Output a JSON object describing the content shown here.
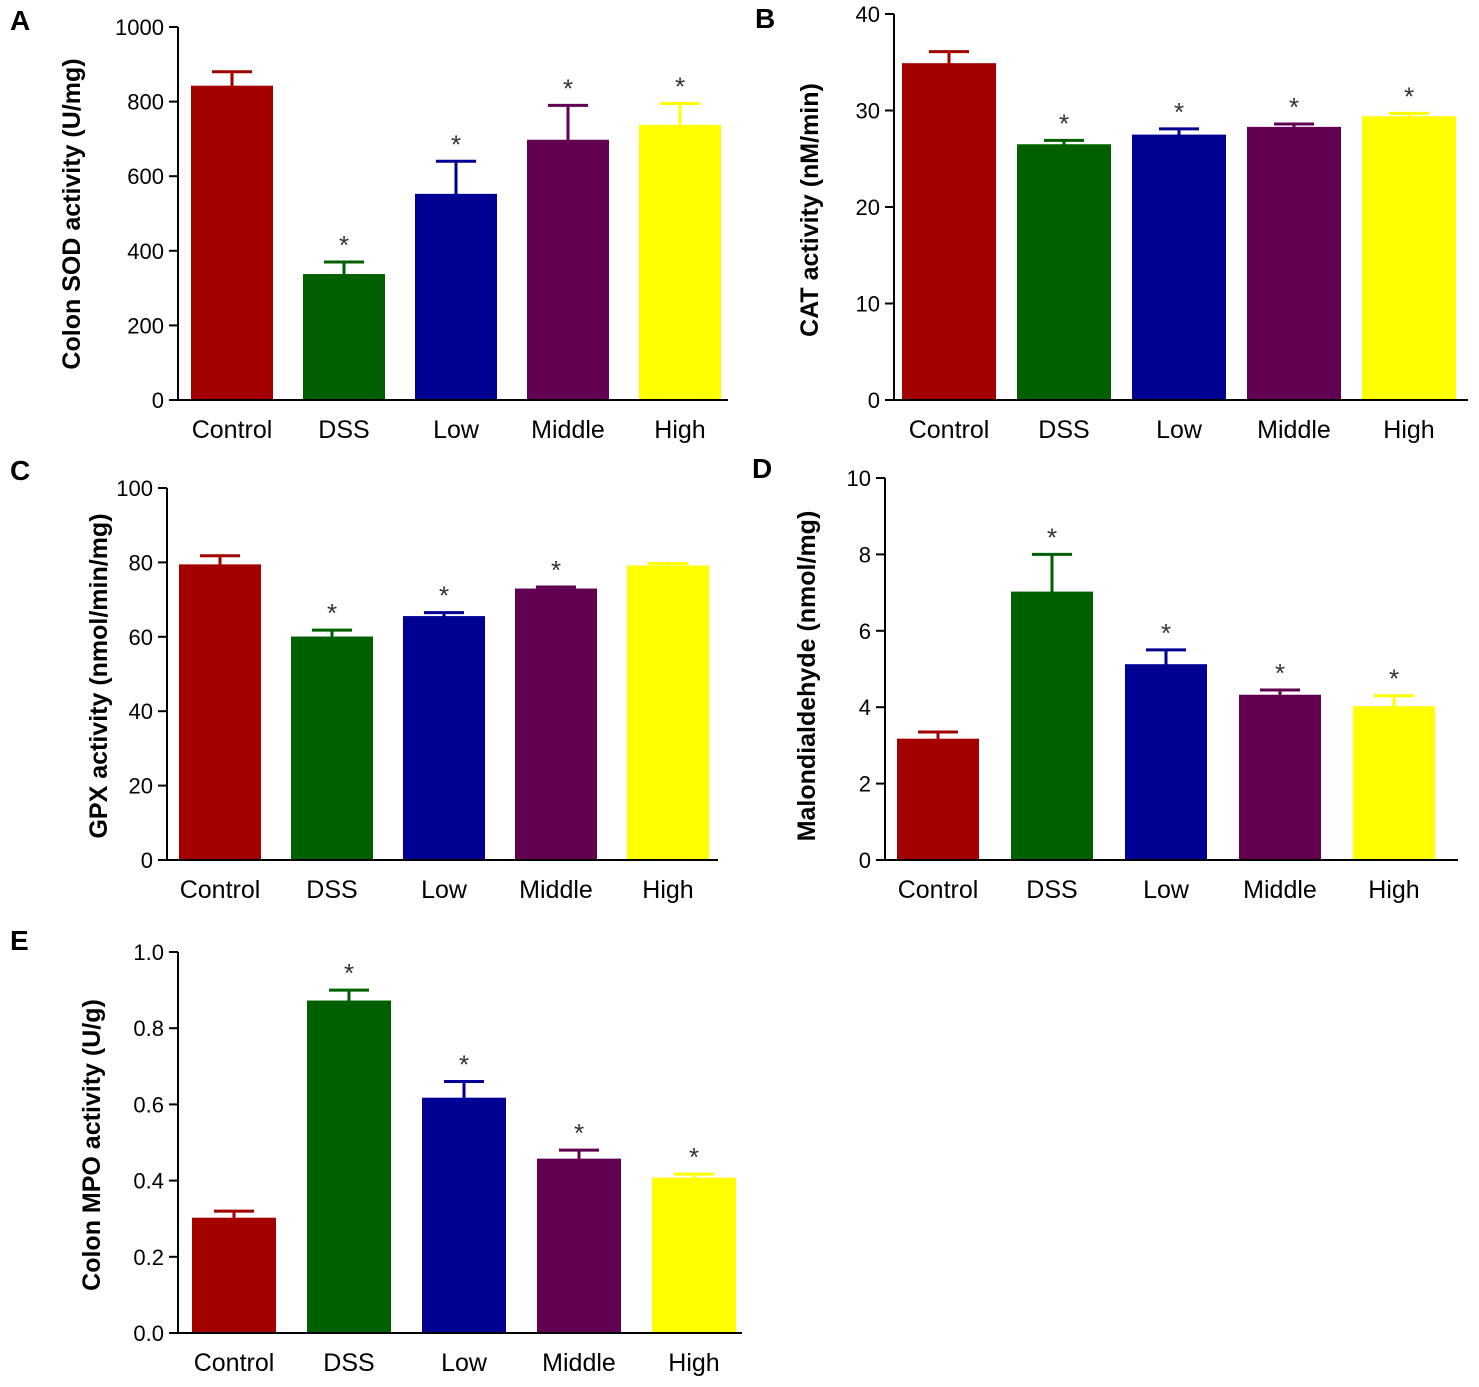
{
  "colors": {
    "Control": "#a30000",
    "DSS": "#006000",
    "Low": "#000093",
    "Middle": "#620052",
    "High": "#ffff00",
    "axis": "#000000"
  },
  "chart_data": [
    {
      "panel": "A",
      "type": "bar",
      "title": "",
      "xlabel": "",
      "ylabel": "Colon SOD activity (U/mg)",
      "categories": [
        "Control",
        "DSS",
        "Low",
        "Middle",
        "High"
      ],
      "values": [
        840,
        335,
        550,
        695,
        735
      ],
      "errors": [
        40,
        35,
        90,
        95,
        60
      ],
      "significance": [
        "",
        "*",
        "*",
        "*",
        "*"
      ],
      "ylim": [
        0,
        1000
      ],
      "yticks": [
        "0",
        "200",
        "400",
        "600",
        "800",
        "1000"
      ],
      "ytick_values": [
        0,
        200,
        400,
        600,
        800,
        1000
      ]
    },
    {
      "panel": "B",
      "type": "bar",
      "title": "",
      "xlabel": "",
      "ylabel": "CAT activity (nM/min)",
      "categories": [
        "Control",
        "DSS",
        "Low",
        "Middle",
        "High"
      ],
      "values": [
        34.8,
        26.4,
        27.4,
        28.2,
        29.3
      ],
      "errors": [
        1.3,
        0.5,
        0.7,
        0.4,
        0.4
      ],
      "significance": [
        "",
        "*",
        "*",
        "*",
        "*"
      ],
      "ylim": [
        0,
        40
      ],
      "yticks": [
        "0",
        "10",
        "20",
        "30",
        "40"
      ],
      "ytick_values": [
        0,
        10,
        20,
        30,
        40
      ]
    },
    {
      "panel": "C",
      "type": "bar",
      "title": "",
      "xlabel": "",
      "ylabel": "GPX activity (nmol/min/mg)",
      "categories": [
        "Control",
        "DSS",
        "Low",
        "Middle",
        "High"
      ],
      "values": [
        79.2,
        59.8,
        65.3,
        72.7,
        78.9
      ],
      "errors": [
        2.6,
        2.0,
        1.2,
        0.7,
        0.8
      ],
      "significance": [
        "",
        "*",
        "*",
        "*",
        ""
      ],
      "ylim": [
        0,
        100
      ],
      "yticks": [
        "0",
        "20",
        "40",
        "60",
        "80",
        "100"
      ],
      "ytick_values": [
        0,
        20,
        40,
        60,
        80,
        100
      ]
    },
    {
      "panel": "D",
      "type": "bar",
      "title": "",
      "xlabel": "",
      "ylabel": "Malondialdehyde  (nmol/mg)",
      "categories": [
        "Control",
        "DSS",
        "Low",
        "Middle",
        "High"
      ],
      "values": [
        3.15,
        7.0,
        5.1,
        4.3,
        4.0
      ],
      "errors": [
        0.2,
        1.0,
        0.4,
        0.15,
        0.3
      ],
      "significance": [
        "",
        "*",
        "*",
        "*",
        "*"
      ],
      "ylim": [
        0,
        10
      ],
      "yticks": [
        "0",
        "2",
        "4",
        "6",
        "8",
        "10"
      ],
      "ytick_values": [
        0,
        2,
        4,
        6,
        8,
        10
      ]
    },
    {
      "panel": "E",
      "type": "bar",
      "title": "",
      "xlabel": "",
      "ylabel": "Colon MPO activity (U/g)",
      "categories": [
        "Control",
        "DSS",
        "Low",
        "Middle",
        "High"
      ],
      "values": [
        0.3,
        0.87,
        0.615,
        0.455,
        0.405
      ],
      "errors": [
        0.02,
        0.03,
        0.045,
        0.025,
        0.012
      ],
      "significance": [
        "",
        "*",
        "*",
        "*",
        "*"
      ],
      "ylim": [
        0,
        1.0
      ],
      "yticks": [
        "0.0",
        "0.2",
        "0.4",
        "0.6",
        "0.8",
        "1.0"
      ],
      "ytick_values": [
        0,
        0.2,
        0.4,
        0.6,
        0.8,
        1.0
      ]
    }
  ]
}
